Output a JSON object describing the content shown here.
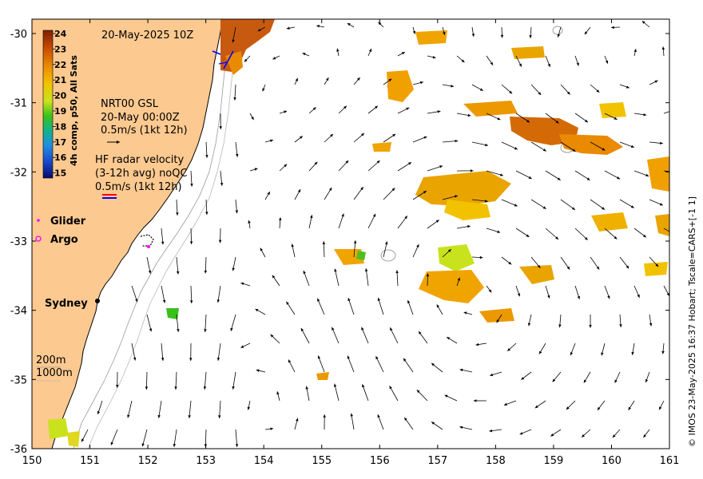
{
  "map": {
    "date_label": "20-May-2025 10Z",
    "colorbar": {
      "title": "4h comp, p50, All Sats",
      "ticks": [
        "24",
        "23",
        "22",
        "21",
        "20",
        "19",
        "18",
        "17",
        "16",
        "15"
      ],
      "colors": [
        "#7f1f00",
        "#c84a00",
        "#e98a00",
        "#f2c200",
        "#c9e21e",
        "#39c01c",
        "#13b28c",
        "#1f8fe0",
        "#1a4fd0",
        "#0a0a6e"
      ]
    },
    "gsl": {
      "line1": "NRT00 GSL",
      "line2": "20-May 00:00Z",
      "line3": "0.5m/s (1kt 12h)"
    },
    "hf": {
      "line1": "HF radar velocity",
      "line2": "(3-12h avg) noQC",
      "line3": "0.5m/s (1kt 12h)"
    },
    "legend": {
      "glider": "Glider",
      "argo": "Argo"
    },
    "place": {
      "sydney": "Sydney"
    },
    "contours": {
      "c200": "200m",
      "c1000": "1000m"
    },
    "x_ticks": [
      "150",
      "151",
      "152",
      "153",
      "154",
      "155",
      "156",
      "157",
      "158",
      "159",
      "160",
      "161"
    ],
    "y_ticks": [
      "-30",
      "-31",
      "-32",
      "-33",
      "-34",
      "-35",
      "-36"
    ],
    "credit": "© IMOS 23-May-2025 16:37 Hobart; Tscale=CARS+[-1 1]",
    "colors": {
      "land": "#fcc990",
      "ocean": "#ffffff",
      "arrow": "#000000",
      "glider": "#ff00ff",
      "argo": "#ff00ff",
      "hf_red": "#ff0000",
      "hf_blue": "#0000ff"
    }
  }
}
